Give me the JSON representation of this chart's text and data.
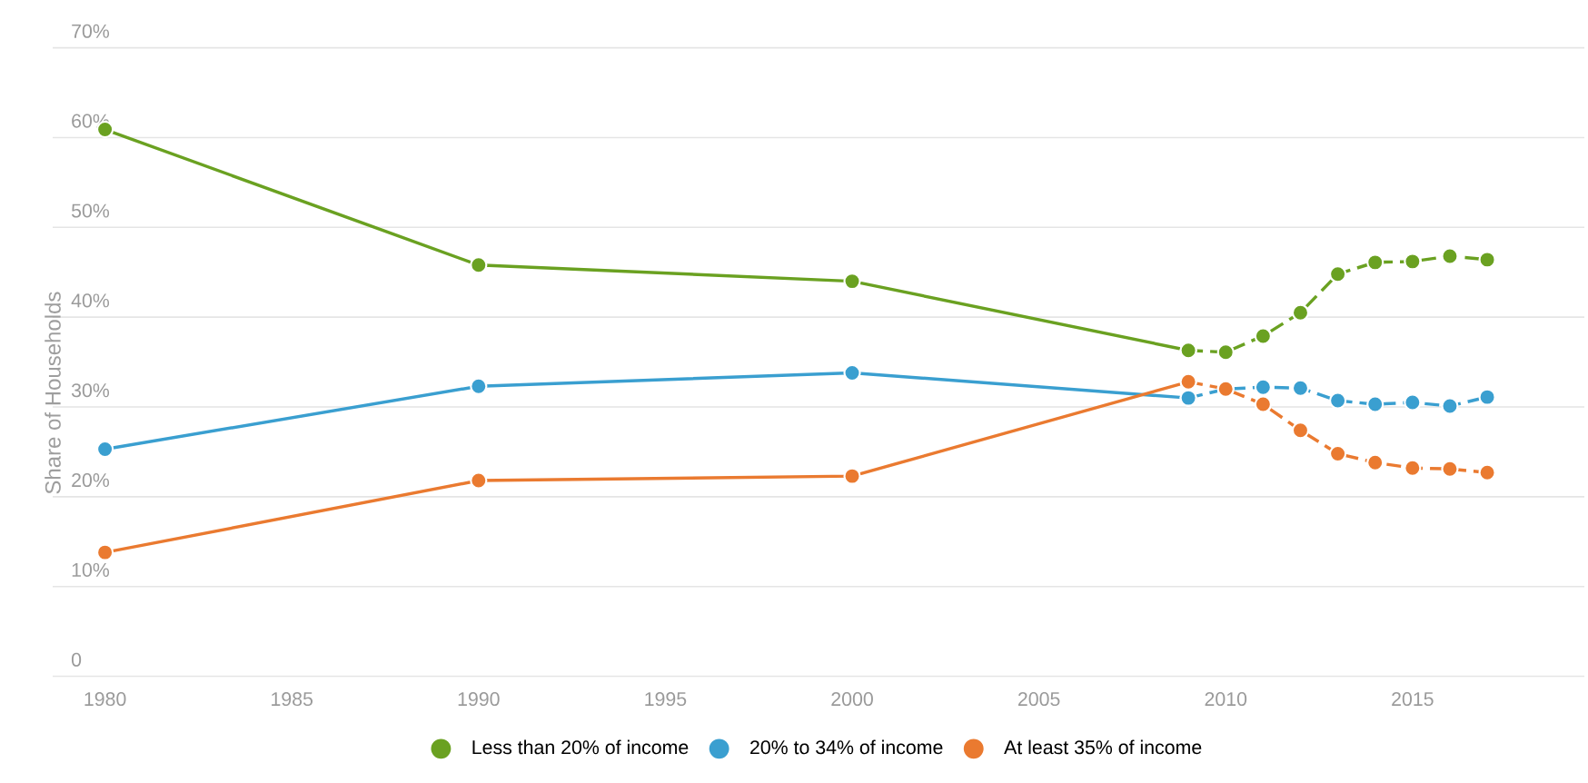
{
  "chart_data": {
    "type": "line",
    "ylabel": "Share of Households",
    "xlim": [
      1978.6,
      2019.6
    ],
    "xticks": [
      1980,
      1985,
      1990,
      1995,
      2000,
      2005,
      2010,
      2015
    ],
    "ylim": [
      0,
      70
    ],
    "yticks": [
      0,
      {
        "value": 10,
        "label": "10%"
      },
      {
        "value": 20,
        "label": "20%"
      },
      {
        "value": 30,
        "label": "30%"
      },
      {
        "value": 40,
        "label": "40%"
      },
      {
        "value": 50,
        "label": "50%"
      },
      {
        "value": 60,
        "label": "60%"
      },
      {
        "value": 70,
        "label": "70%"
      }
    ],
    "grid": "y",
    "legend": "bottom",
    "marker": "circle",
    "line_style": "solid",
    "series": [
      {
        "name": "Less than 20% of income",
        "color": "#6aa121",
        "x": [
          1980,
          1990,
          2000,
          2009
        ],
        "values": [
          60.9,
          45.8,
          44.0,
          36.3
        ]
      },
      {
        "name": "20% to 34% of income",
        "color": "#3a9fd0",
        "x": [
          1980,
          1990,
          2000,
          2009
        ],
        "values": [
          25.3,
          32.3,
          33.8,
          31.0
        ]
      },
      {
        "name": "At least 35% of income",
        "color": "#ea7a30",
        "x": [
          1980,
          1990,
          2000,
          2009
        ],
        "values": [
          13.8,
          21.8,
          22.3,
          32.8
        ]
      },
      {
        "color": "#6aa121",
        "line_style": "dashed",
        "x": [
          2009,
          2010,
          2011,
          2012,
          2013,
          2014,
          2015,
          2016,
          2017
        ],
        "values": [
          36.3,
          36.1,
          37.9,
          40.5,
          44.8,
          46.1,
          46.2,
          46.8,
          46.4
        ]
      },
      {
        "color": "#3a9fd0",
        "line_style": "dashed",
        "x": [
          2009,
          2010,
          2011,
          2012,
          2013,
          2014,
          2015,
          2016,
          2017
        ],
        "values": [
          31.0,
          32.0,
          32.2,
          32.1,
          30.7,
          30.3,
          30.5,
          30.1,
          31.1
        ]
      },
      {
        "color": "#ea7a30",
        "line_style": "dashed",
        "x": [
          2009,
          2010,
          2011,
          2012,
          2013,
          2014,
          2015,
          2016,
          2017
        ],
        "values": [
          32.8,
          32.0,
          30.3,
          27.4,
          24.8,
          23.8,
          23.2,
          23.1,
          22.7
        ]
      }
    ]
  }
}
